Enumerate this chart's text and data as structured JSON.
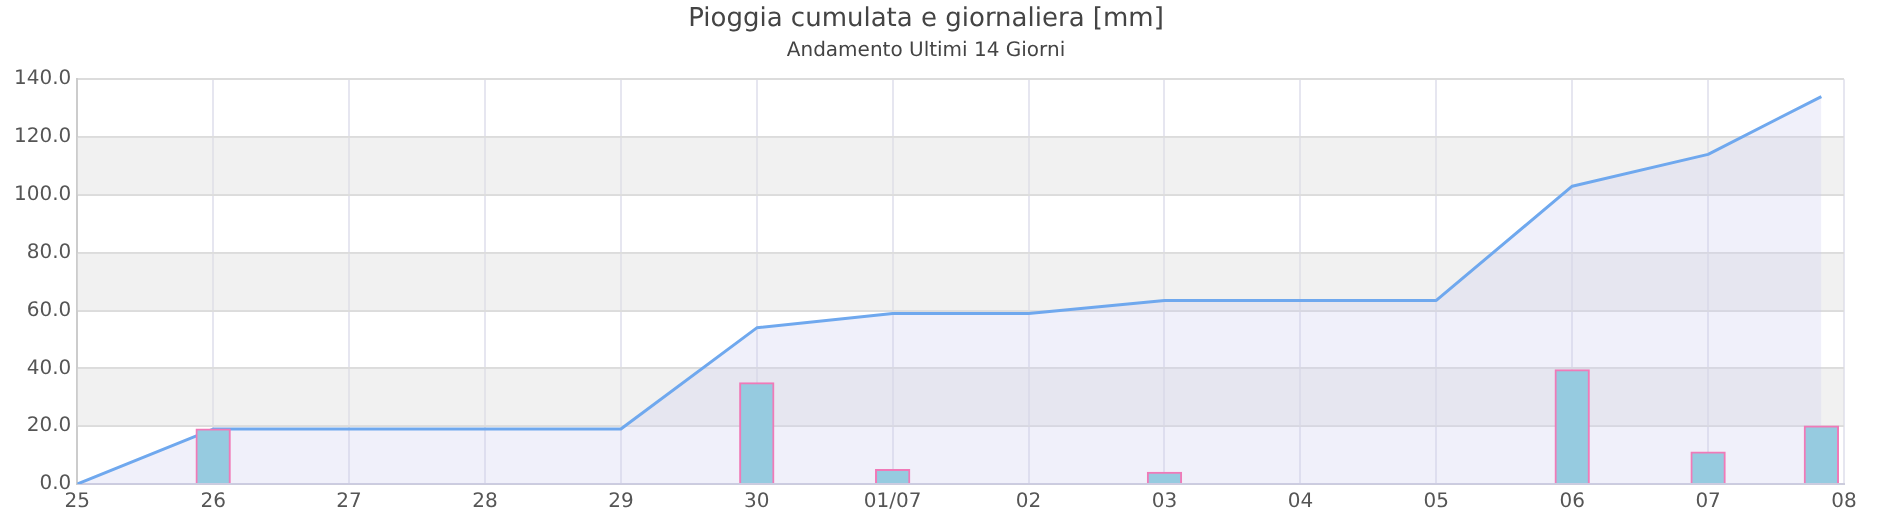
{
  "chart_data": {
    "type": "bar",
    "title": "Pioggia cumulata e giornaliera [mm]",
    "subtitle": "Andamento Ultimi 14 Giorni",
    "series": [
      {
        "color": "#96cbe0",
        "x": [
          "--06-26",
          "--06-30",
          "--07-01",
          "--07-03",
          "--07-06",
          "--07-07",
          "--07-07T20:00"
        ],
        "values": [
          19,
          35,
          5,
          4,
          39.5,
          11,
          20
        ]
      },
      {
        "type": "area",
        "color": "#6fa8ee",
        "x": [
          "--06-25",
          "--06-26",
          "--06-27",
          "--06-28",
          "--06-29",
          "--06-30",
          "--07-01",
          "--07-02",
          "--07-03",
          "--07-04",
          "--07-05",
          "--07-06",
          "--07-07",
          "--07-07T20:00"
        ],
        "values": [
          0,
          19,
          19,
          19,
          19,
          54,
          59,
          59,
          63.5,
          63.5,
          63.5,
          103,
          114,
          134
        ]
      }
    ],
    "xlim": [
      "--06-25",
      "--07-08"
    ],
    "xticks": [
      {
        "value": "--06-25",
        "label": "25"
      },
      {
        "value": "--06-26",
        "label": "26"
      },
      {
        "value": "--06-27",
        "label": "27"
      },
      {
        "value": "--06-28",
        "label": "28"
      },
      {
        "value": "--06-29",
        "label": "29"
      },
      {
        "value": "--06-30",
        "label": "30"
      },
      {
        "value": "--07-01",
        "label": "01/07"
      },
      {
        "value": "--07-02",
        "label": "02"
      },
      {
        "value": "--07-03",
        "label": "03"
      },
      {
        "value": "--07-04",
        "label": "04"
      },
      {
        "value": "--07-05",
        "label": "05"
      },
      {
        "value": "--07-06",
        "label": "06"
      },
      {
        "value": "--07-07",
        "label": "07"
      },
      {
        "value": "--07-08",
        "label": "08"
      }
    ],
    "ylim": [
      0,
      140
    ],
    "yticks": [
      {
        "value": 0,
        "label": "0.0"
      },
      {
        "value": 20,
        "label": "20.0"
      },
      {
        "value": 40,
        "label": "40.0"
      },
      {
        "value": 60,
        "label": "60.0"
      },
      {
        "value": 80,
        "label": "80.0"
      },
      {
        "value": 100,
        "label": "100.0"
      },
      {
        "value": 120,
        "label": "120.0"
      },
      {
        "value": 140,
        "label": "140.0"
      }
    ],
    "grid": true,
    "legend": false
  }
}
